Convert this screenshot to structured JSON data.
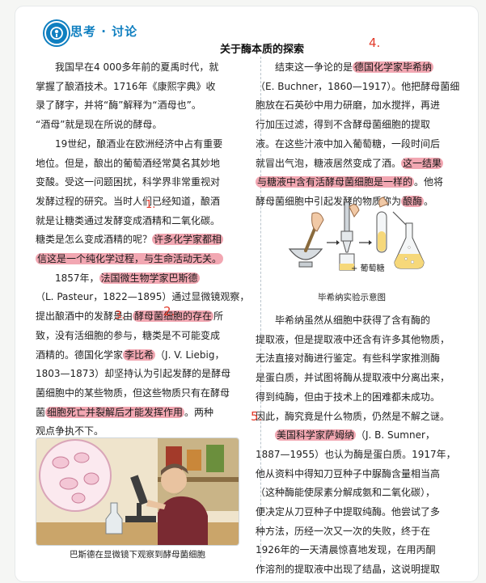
{
  "header": {
    "section_title": "思考 · 讨论",
    "document_title": "关于酶本质的探索"
  },
  "left_column": {
    "paragraphs": [
      {
        "lines": [
          "我国早在4 000多年前的夏禹时代，就",
          "掌握了酿酒技术。1716年《康熙字典》收",
          "录了酵字，并将“酶”解释为“酒母也”。",
          "“酒母”就是现在所说的酵母。"
        ]
      },
      {
        "lines": [
          "19世纪，酿酒业在欧洲经济中占有重要",
          "地位。但是，酿出的葡萄酒经常莫名其妙地",
          "变酸。受这一问题困扰，科学界非常重视对",
          "发酵过程的研究。当时人们已经知道，酿酒",
          "就是让糖类通过发酵变成酒精和二氧化碳。"
        ]
      },
      {
        "line_a": "糖类是怎么变成酒精的呢？",
        "hl_a": "许多化学家都相",
        "hl_b": "信这是一个纯化学过程，与生命活动无关。"
      },
      {
        "p3_a": "1857年，",
        "p3_hl": "法国微生物学家巴斯德",
        "p3_b": "（L. Pasteur，1822—1895）通过显微镜观察，",
        "p3_c": "提出酿酒中的发酵是由",
        "p3_hl2": "酵母菌细胞的存在",
        "p3_c2": "所",
        "p3_d": "致，没有活细胞的参与，糖类是不可能变成",
        "p3_e": "酒精的。德国化学家",
        "p3_hl3": "李比希",
        "p3_e2": "（J. V. Liebig，",
        "p3_f": "1803—1873）却坚持认为引起发酵的是酵母",
        "p3_g": "菌细胞中的某些物质，但这些物质只有在酵母",
        "p3_h": "菌",
        "p3_hl4": "细胞死亡并裂解后才能发挥作用",
        "p3_h2": "。两种",
        "p3_i": "观点争执不下。"
      }
    ]
  },
  "right_column": {
    "r1_a": "结束这一争论的是",
    "r1_hl": "德国化学家毕希纳",
    "r2": "（E. Buchner，1860—1917）。他把酵母菌细",
    "r3": "胞放在石英砂中用力研磨，加水搅拌，再进",
    "r4": "行加压过滤，得到不含酵母菌细胞的提取",
    "r5": "液。在这些汁液中加入葡萄糖，一段时间后",
    "r6_a": "就冒出气泡，糖液居然变成了酒。",
    "r6_hl": "这一结果",
    "r7_hl": "与糖液中含有活酵母菌细胞是一样的",
    "r7_b": "。他将",
    "r8_a": "酵母菌细胞中引起发酵的物质称为",
    "r8_hl": "酿酶",
    "r8_b": "。",
    "b1": "毕希纳虽然从细胞中获得了含有酶的",
    "b2": "提取液，但是提取液中还含有许多其他物质，",
    "b3": "无法直接对酶进行鉴定。有些科学家推测酶",
    "b4": "是蛋白质，并试图将酶从提取液中分离出来，",
    "b5": "得到纯酶，但由于技术上的困难都未成功。",
    "b6": "因此，酶究竟是什么物质，仍然是不解之谜。",
    "b7_hl": "美国科学家萨姆纳",
    "b7_b": "（J. B. Sumner，",
    "b8": "1887—1955）也认为酶是蛋白质。1917年，",
    "b9": "他从资料中得知刀豆种子中脲酶含量相当高",
    "b10": "（这种酶能使尿素分解成氨和二氧化碳），",
    "b11": "便决定从刀豆种子中提取纯酶。他尝试了多",
    "b12": "种方法，历经一次又一次的失败，终于在",
    "b13": "1926年的一天清晨惊喜地发现，在用丙酮",
    "b14": "作溶剂的提取液中出现了结晶，这说明提取"
  },
  "figures": {
    "diagram_caption": "毕希纳实验示意图",
    "diagram_label": "+ 葡萄糖",
    "illustration_caption": "巴斯德在显微镜下观察到酵母菌细胞"
  },
  "annotations": [
    "1.",
    "2.",
    "3.",
    "4.",
    "5."
  ],
  "colors": {
    "accent": "#0f7fc0",
    "highlight": "#f2a7b2",
    "annotation": "#e23a2a"
  }
}
